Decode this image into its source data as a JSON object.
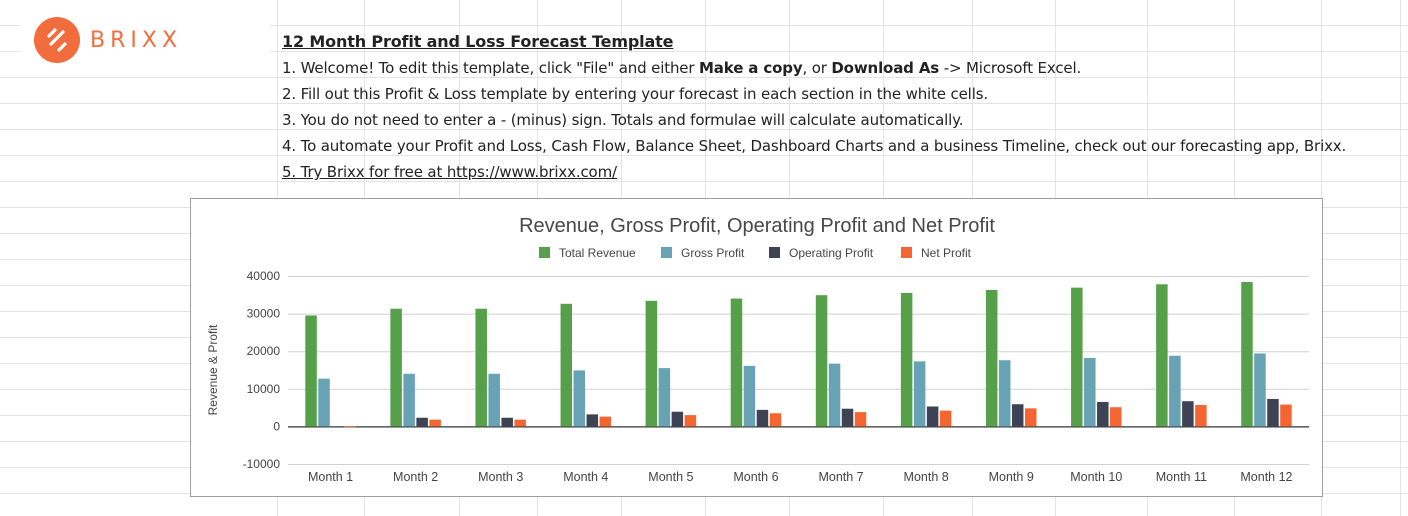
{
  "brand": {
    "name": "BRIXX",
    "accent": "#f26d3d"
  },
  "instructions": {
    "title": "12 Month Profit and Loss Forecast Template",
    "line1": {
      "a": "1. Welcome! To edit this template, click \"File\" and either ",
      "b": "Make a copy",
      "c": ", or ",
      "d": "Download As",
      "e": " -> Microsoft Excel."
    },
    "line2": "2. Fill out this Profit & Loss template by entering your forecast in each section in the white cells.",
    "line3": "3. You do not need to enter a - (minus) sign. Totals and formulae will calculate automatically.",
    "line4": "4. To automate your Profit and Loss, Cash Flow, Balance Sheet, Dashboard Charts and a business Timeline, check out our forecasting app, Brixx.",
    "line5": "5. Try Brixx for free at https://www.brixx.com/"
  },
  "chart_data": {
    "type": "bar",
    "title": "Revenue, Gross Profit, Operating Profit and Net Profit",
    "ylabel": "Revenue & Profit",
    "xlabel": "",
    "ylim": [
      -10000,
      40000
    ],
    "yticks": [
      40000,
      30000,
      20000,
      10000,
      0,
      -10000
    ],
    "legend_position": "top",
    "grid": true,
    "categories": [
      "Month 1",
      "Month 2",
      "Month 3",
      "Month 4",
      "Month 5",
      "Month 6",
      "Month 7",
      "Month 8",
      "Month 9",
      "Month 10",
      "Month 11",
      "Month 12"
    ],
    "series": [
      {
        "name": "Total Revenue",
        "color": "#57a04a",
        "values": [
          29500,
          31300,
          31300,
          32600,
          33400,
          34000,
          34900,
          35500,
          36300,
          36900,
          37800,
          38400
        ]
      },
      {
        "name": "Gross Profit",
        "color": "#67a3b5",
        "values": [
          12700,
          14000,
          14000,
          14900,
          15500,
          16100,
          16700,
          17300,
          17600,
          18200,
          18800,
          19400
        ]
      },
      {
        "name": "Operating Profit",
        "color": "#3d4354",
        "values": [
          0,
          2300,
          2300,
          3200,
          3900,
          4400,
          4700,
          5300,
          5900,
          6500,
          6700,
          7300
        ]
      },
      {
        "name": "Net Profit",
        "color": "#f46531",
        "values": [
          -200,
          1800,
          1800,
          2600,
          3000,
          3500,
          3800,
          4200,
          4800,
          5100,
          5700,
          5800
        ]
      }
    ]
  }
}
